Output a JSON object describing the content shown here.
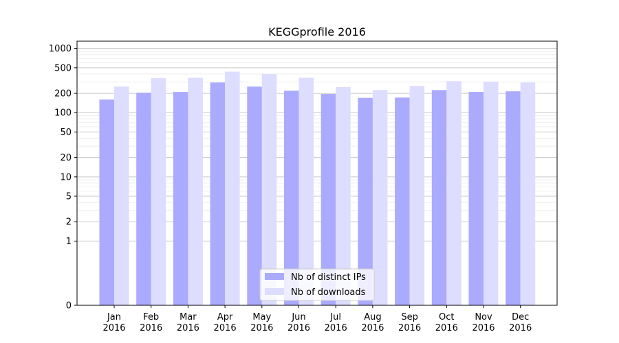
{
  "chart_data": {
    "type": "bar",
    "title": "KEGGprofile 2016",
    "scale": "symlog",
    "categories": [
      "Jan\n2016",
      "Feb\n2016",
      "Mar\n2016",
      "Apr\n2016",
      "May\n2016",
      "Jun\n2016",
      "Jul\n2016",
      "Aug\n2016",
      "Sep\n2016",
      "Oct\n2016",
      "Nov\n2016",
      "Dec\n2016"
    ],
    "series": [
      {
        "name": "Nb of distinct IPs",
        "color": "#aaaaff",
        "values": [
          160,
          205,
          210,
          295,
          255,
          220,
          195,
          170,
          172,
          225,
          210,
          215
        ]
      },
      {
        "name": "Nb of downloads",
        "color": "#ddddff",
        "values": [
          255,
          345,
          350,
          435,
          400,
          350,
          250,
          225,
          260,
          310,
          305,
          295
        ]
      }
    ],
    "yticks": [
      {
        "value": 0,
        "label": "0"
      },
      {
        "value": 1,
        "label": "1"
      },
      {
        "value": 2,
        "label": "2"
      },
      {
        "value": 5,
        "label": "5"
      },
      {
        "value": 10,
        "label": "10"
      },
      {
        "value": 20,
        "label": "20"
      },
      {
        "value": 50,
        "label": "50"
      },
      {
        "value": 100,
        "label": "100"
      },
      {
        "value": 200,
        "label": "200"
      },
      {
        "value": 500,
        "label": "500"
      },
      {
        "value": 1000,
        "label": "1000"
      }
    ],
    "ylim": [
      0,
      1300
    ],
    "grid": true,
    "legend_position": "bottom-center"
  }
}
